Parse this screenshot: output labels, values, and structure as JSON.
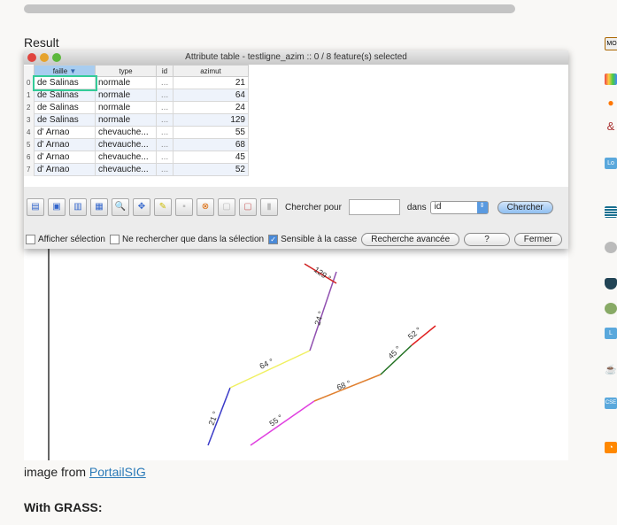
{
  "result_label": "Result",
  "window": {
    "title": "Attribute table - testligne_azim :: 0 / 8 feature(s) selected"
  },
  "table": {
    "columns": [
      "faille",
      "type",
      "id",
      "azimut"
    ],
    "rows": [
      {
        "n": "0",
        "faille": "de Salinas",
        "type": "normale",
        "id": "...",
        "azimut": "21"
      },
      {
        "n": "1",
        "faille": "de Salinas",
        "type": "normale",
        "id": "...",
        "azimut": "64"
      },
      {
        "n": "2",
        "faille": "de Salinas",
        "type": "normale",
        "id": "...",
        "azimut": "24"
      },
      {
        "n": "3",
        "faille": "de Salinas",
        "type": "normale",
        "id": "...",
        "azimut": "129"
      },
      {
        "n": "4",
        "faille": "d' Arnao",
        "type": "chevauche...",
        "id": "...",
        "azimut": "55"
      },
      {
        "n": "5",
        "faille": "d' Arnao",
        "type": "chevauche...",
        "id": "...",
        "azimut": "68"
      },
      {
        "n": "6",
        "faille": "d' Arnao",
        "type": "chevauche...",
        "id": "...",
        "azimut": "45"
      },
      {
        "n": "7",
        "faille": "d' Arnao",
        "type": "chevauche...",
        "id": "...",
        "azimut": "52"
      }
    ]
  },
  "search": {
    "label": "Chercher pour",
    "value": "",
    "in_label": "dans",
    "field": "id",
    "button": "Chercher"
  },
  "options": {
    "show_selection": "Afficher sélection",
    "only_selection": "Ne rechercher que dans la sélection",
    "case_sensitive": "Sensible à la casse",
    "case_checked": true,
    "advanced": "Recherche avancée",
    "help": "?",
    "close": "Fermer"
  },
  "map_labels": [
    "21 °",
    "64 °",
    "24 °",
    "129 °",
    "55 °",
    "68 °",
    "45 °",
    "52 °"
  ],
  "caption": {
    "prefix": "image from ",
    "link": "PortailSIG"
  },
  "heading": "With GRASS:",
  "sidebar_icons": [
    "mo-icon",
    "palette-icon",
    "map-pin-icon",
    "ampersand-icon",
    "lo-chat-icon",
    "stack-icon",
    "gear-circle-icon",
    "shield-icon",
    "globe-icon",
    "l-chat-icon",
    "cup-icon",
    "cse-chat-icon",
    "rss-icon"
  ],
  "sidebar_texts": {
    "mo": "MO",
    "lo": "Lo",
    "l": "L",
    "cse": "CSE"
  }
}
